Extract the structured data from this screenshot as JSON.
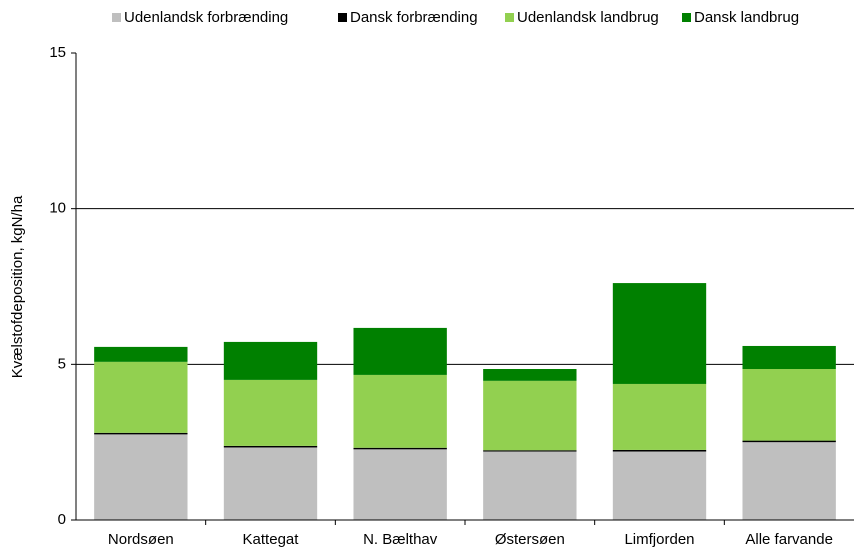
{
  "chart_data": {
    "type": "stacked_bar",
    "y_label": "Kvælstofdeposition, kgN/ha",
    "categories": [
      "Nordsøen",
      "Kattegat",
      "N. Bælthav",
      "Østersøen",
      "Limfjorden",
      "Alle farvande"
    ],
    "series": [
      {
        "name": "Udenlandsk forbrænding",
        "color": "#bfbfbf",
        "values": [
          2.75,
          2.33,
          2.27,
          2.2,
          2.2,
          2.5
        ]
      },
      {
        "name": "Dansk forbrænding",
        "color": "#000000",
        "values": [
          0.05,
          0.05,
          0.05,
          0.04,
          0.05,
          0.05
        ]
      },
      {
        "name": "Udenlandsk landbrug",
        "color": "#92d050",
        "values": [
          2.28,
          2.12,
          2.34,
          2.23,
          2.12,
          2.3
        ]
      },
      {
        "name": "Dansk landbrug",
        "color": "#008000",
        "values": [
          0.48,
          1.22,
          1.51,
          0.38,
          3.24,
          0.74
        ]
      }
    ],
    "ylim": [
      0,
      15
    ],
    "yticks": [
      0,
      5,
      10,
      15
    ],
    "grid": true
  }
}
